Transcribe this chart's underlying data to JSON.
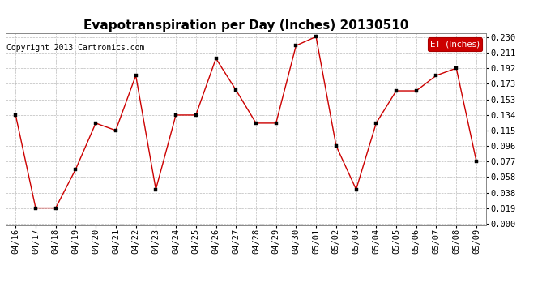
{
  "title": "Evapotranspiration per Day (Inches) 20130510",
  "copyright": "Copyright 2013 Cartronics.com",
  "legend_label": "ET  (Inches)",
  "legend_bg": "#cc0000",
  "legend_text_color": "#ffffff",
  "x_labels": [
    "04/16",
    "04/17",
    "04/18",
    "04/19",
    "04/20",
    "04/21",
    "04/22",
    "04/23",
    "04/24",
    "04/25",
    "04/26",
    "04/27",
    "04/28",
    "04/29",
    "04/30",
    "05/01",
    "05/02",
    "05/03",
    "05/04",
    "05/05",
    "05/06",
    "05/07",
    "05/08",
    "05/09"
  ],
  "y_values": [
    0.134,
    0.019,
    0.019,
    0.067,
    0.124,
    0.115,
    0.183,
    0.042,
    0.134,
    0.134,
    0.204,
    0.165,
    0.124,
    0.124,
    0.22,
    0.231,
    0.096,
    0.042,
    0.124,
    0.164,
    0.164,
    0.183,
    0.192,
    0.077
  ],
  "y_ticks": [
    0.0,
    0.019,
    0.038,
    0.058,
    0.077,
    0.096,
    0.115,
    0.134,
    0.153,
    0.173,
    0.192,
    0.211,
    0.23
  ],
  "y_min": -0.002,
  "y_max": 0.235,
  "line_color": "#cc0000",
  "marker": "s",
  "marker_size": 2.5,
  "bg_color": "#ffffff",
  "grid_color": "#bbbbbb",
  "title_fontsize": 11,
  "copyright_fontsize": 7,
  "tick_fontsize": 7.5,
  "legend_fontsize": 7.5
}
